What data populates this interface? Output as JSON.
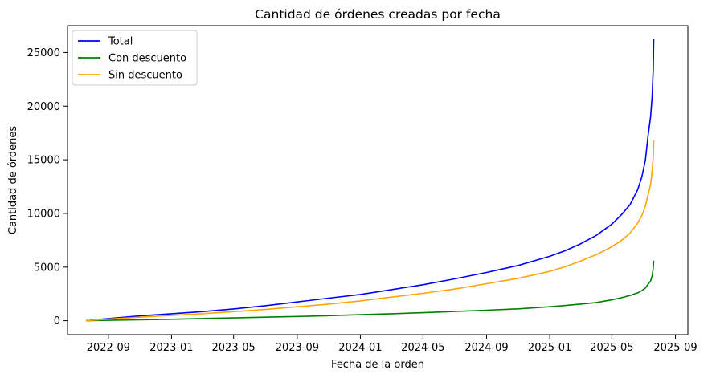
{
  "chart_data": {
    "type": "line",
    "title": "Cantidad de órdenes creadas por fecha",
    "xlabel": "Fecha de la orden",
    "ylabel": "Cantidad de órdenes",
    "x_ticks": [
      "2022-09",
      "2023-01",
      "2023-05",
      "2023-09",
      "2024-01",
      "2024-05",
      "2024-09",
      "2025-01",
      "2025-05",
      "2025-09"
    ],
    "y_ticks": [
      "0",
      "5000",
      "10000",
      "15000",
      "20000",
      "25000"
    ],
    "xlim": [
      "2022-06-14",
      "2025-09-25"
    ],
    "ylim": [
      -1300,
      27500
    ],
    "grid": false,
    "legend_position": "top-left",
    "series": [
      {
        "name": "Total",
        "color": "#0000ff",
        "x": [
          "2022-07-20",
          "2022-09-01",
          "2022-11-01",
          "2023-01-01",
          "2023-03-01",
          "2023-05-01",
          "2023-07-01",
          "2023-09-01",
          "2023-11-01",
          "2024-01-01",
          "2024-03-01",
          "2024-05-01",
          "2024-07-01",
          "2024-09-01",
          "2024-11-01",
          "2025-01-01",
          "2025-02-01",
          "2025-03-01",
          "2025-04-01",
          "2025-05-01",
          "2025-05-20",
          "2025-06-05",
          "2025-06-20",
          "2025-06-28",
          "2025-07-05",
          "2025-07-10",
          "2025-07-15",
          "2025-07-18",
          "2025-07-20",
          "2025-07-21"
        ],
        "y": [
          0,
          200,
          450,
          650,
          850,
          1100,
          1400,
          1750,
          2100,
          2450,
          2900,
          3350,
          3900,
          4500,
          5150,
          6000,
          6550,
          7150,
          7950,
          9000,
          9900,
          10800,
          12200,
          13400,
          15000,
          17200,
          19000,
          21000,
          23500,
          26300
        ]
      },
      {
        "name": "Con descuento",
        "color": "#008000",
        "x": [
          "2022-07-20",
          "2022-09-01",
          "2022-11-01",
          "2023-01-01",
          "2023-03-01",
          "2023-05-01",
          "2023-07-01",
          "2023-09-01",
          "2023-11-01",
          "2024-01-01",
          "2024-03-01",
          "2024-05-01",
          "2024-07-01",
          "2024-09-01",
          "2024-11-01",
          "2025-01-01",
          "2025-02-01",
          "2025-03-01",
          "2025-04-01",
          "2025-05-01",
          "2025-05-20",
          "2025-06-05",
          "2025-06-20",
          "2025-06-28",
          "2025-07-05",
          "2025-07-10",
          "2025-07-15",
          "2025-07-18",
          "2025-07-20",
          "2025-07-21"
        ],
        "y": [
          0,
          40,
          90,
          140,
          200,
          260,
          330,
          400,
          470,
          560,
          650,
          750,
          860,
          980,
          1110,
          1300,
          1420,
          1550,
          1700,
          1950,
          2150,
          2350,
          2600,
          2800,
          3050,
          3400,
          3700,
          4200,
          4900,
          5600
        ]
      },
      {
        "name": "Sin descuento",
        "color": "#ffa500",
        "x": [
          "2022-07-20",
          "2022-09-01",
          "2022-11-01",
          "2023-01-01",
          "2023-03-01",
          "2023-05-01",
          "2023-07-01",
          "2023-09-01",
          "2023-11-01",
          "2024-01-01",
          "2024-03-01",
          "2024-05-01",
          "2024-07-01",
          "2024-09-01",
          "2024-11-01",
          "2025-01-01",
          "2025-02-01",
          "2025-03-01",
          "2025-04-01",
          "2025-05-01",
          "2025-05-20",
          "2025-06-05",
          "2025-06-20",
          "2025-06-28",
          "2025-07-05",
          "2025-07-10",
          "2025-07-15",
          "2025-07-18",
          "2025-07-20",
          "2025-07-21"
        ],
        "y": [
          0,
          150,
          330,
          500,
          650,
          850,
          1050,
          1300,
          1550,
          1850,
          2200,
          2550,
          2950,
          3450,
          3950,
          4600,
          5050,
          5550,
          6150,
          6900,
          7500,
          8150,
          9100,
          9800,
          10700,
          11700,
          12700,
          14000,
          15300,
          16800
        ]
      }
    ]
  }
}
